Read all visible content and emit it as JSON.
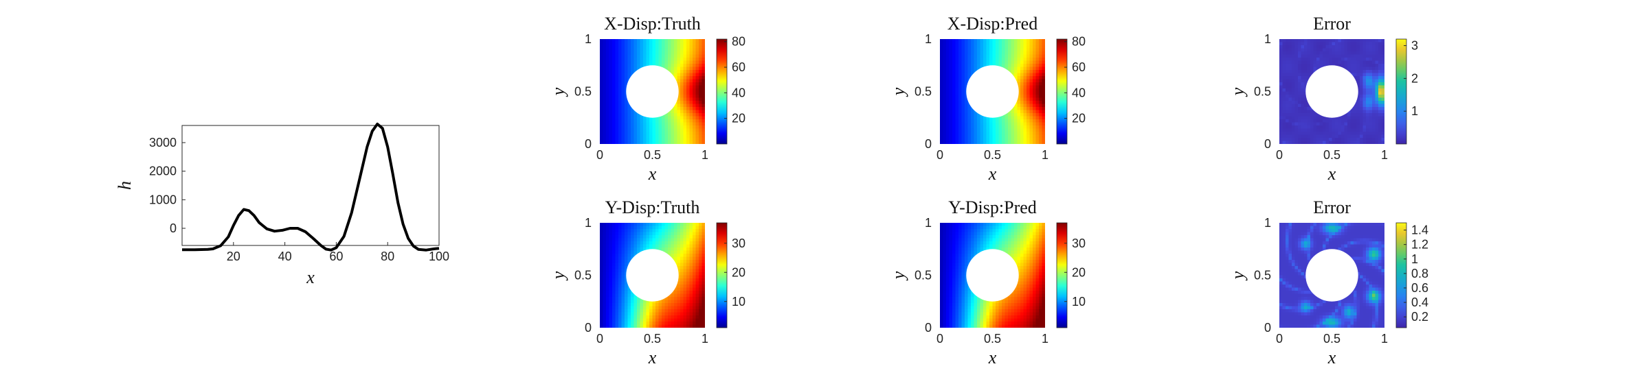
{
  "chart_data": [
    {
      "type": "line",
      "title": "",
      "xlabel": "x",
      "ylabel": "h",
      "xlim": [
        0,
        100
      ],
      "ylim": [
        -600,
        3600
      ],
      "xticks": [
        20,
        40,
        60,
        80,
        100
      ],
      "yticks": [
        0,
        1000,
        2000,
        3000
      ],
      "grid": false,
      "series": [
        {
          "x": [
            0,
            5,
            10,
            12,
            15,
            18,
            20,
            22,
            24,
            26,
            28,
            30,
            33,
            36,
            39,
            42,
            45,
            48,
            51,
            54,
            56,
            58,
            60,
            63,
            66,
            69,
            72,
            74,
            76,
            78,
            80,
            82,
            84,
            86,
            88,
            90,
            92,
            95,
            98,
            100
          ],
          "y": [
            -750,
            -750,
            -740,
            -720,
            -610,
            -300,
            100,
            450,
            660,
            620,
            450,
            200,
            -20,
            -100,
            -70,
            0,
            0,
            -120,
            -350,
            -600,
            -730,
            -760,
            -680,
            -280,
            550,
            1700,
            2850,
            3400,
            3650,
            3500,
            2850,
            1900,
            900,
            150,
            -350,
            -620,
            -740,
            -760,
            -720,
            -700
          ]
        }
      ]
    },
    {
      "type": "heatmap",
      "title": "X-Disp:Truth",
      "xlabel": "x",
      "ylabel": "y",
      "xlim": [
        0,
        1
      ],
      "ylim": [
        0,
        1
      ],
      "xticks": [
        "0",
        "0.5",
        "1"
      ],
      "yticks": [
        "0",
        "0.5",
        "1"
      ],
      "colormap": "jet",
      "clim": [
        0,
        82
      ],
      "colorbar_ticks": [
        "20",
        "40",
        "60",
        "80"
      ],
      "hole": {
        "center": [
          0.5,
          0.5
        ],
        "radius": 0.25
      }
    },
    {
      "type": "heatmap",
      "title": "X-Disp:Pred",
      "xlabel": "x",
      "ylabel": "y",
      "xlim": [
        0,
        1
      ],
      "ylim": [
        0,
        1
      ],
      "xticks": [
        "0",
        "0.5",
        "1"
      ],
      "yticks": [
        "0",
        "0.5",
        "1"
      ],
      "colormap": "jet",
      "clim": [
        0,
        82
      ],
      "colorbar_ticks": [
        "20",
        "40",
        "60",
        "80"
      ],
      "hole": {
        "center": [
          0.5,
          0.5
        ],
        "radius": 0.25
      }
    },
    {
      "type": "heatmap",
      "title": "Error",
      "xlabel": "x",
      "ylabel": "y",
      "xlim": [
        0,
        1
      ],
      "ylim": [
        0,
        1
      ],
      "xticks": [
        "0",
        "0.5",
        "1"
      ],
      "yticks": [
        "0",
        "0.5",
        "1"
      ],
      "colormap": "parula",
      "clim": [
        0,
        3.2
      ],
      "colorbar_ticks": [
        "1",
        "2",
        "3"
      ],
      "hole": {
        "center": [
          0.5,
          0.5
        ],
        "radius": 0.25
      }
    },
    {
      "type": "heatmap",
      "title": "Y-Disp:Truth",
      "xlabel": "x",
      "ylabel": "y",
      "xlim": [
        0,
        1
      ],
      "ylim": [
        0,
        1
      ],
      "xticks": [
        "0",
        "0.5",
        "1"
      ],
      "yticks": [
        "0",
        "0.5",
        "1"
      ],
      "colormap": "jet",
      "clim": [
        1,
        37
      ],
      "colorbar_ticks": [
        "10",
        "20",
        "30"
      ],
      "hole": {
        "center": [
          0.5,
          0.5
        ],
        "radius": 0.25
      }
    },
    {
      "type": "heatmap",
      "title": "Y-Disp:Pred",
      "xlabel": "x",
      "ylabel": "y",
      "xlim": [
        0,
        1
      ],
      "ylim": [
        0,
        1
      ],
      "xticks": [
        "0",
        "0.5",
        "1"
      ],
      "yticks": [
        "0",
        "0.5",
        "1"
      ],
      "colormap": "jet",
      "clim": [
        1,
        37
      ],
      "colorbar_ticks": [
        "10",
        "20",
        "30"
      ],
      "hole": {
        "center": [
          0.5,
          0.5
        ],
        "radius": 0.25
      }
    },
    {
      "type": "heatmap",
      "title": "Error",
      "xlabel": "x",
      "ylabel": "y",
      "xlim": [
        0,
        1
      ],
      "ylim": [
        0,
        1
      ],
      "xticks": [
        "0",
        "0.5",
        "1"
      ],
      "yticks": [
        "0",
        "0.5",
        "1"
      ],
      "colormap": "parula",
      "clim": [
        0.05,
        1.5
      ],
      "colorbar_ticks": [
        "0.2",
        "0.4",
        "0.6",
        "0.8",
        "1",
        "1.2",
        "1.4"
      ],
      "hole": {
        "center": [
          0.5,
          0.5
        ],
        "radius": 0.25
      }
    }
  ]
}
